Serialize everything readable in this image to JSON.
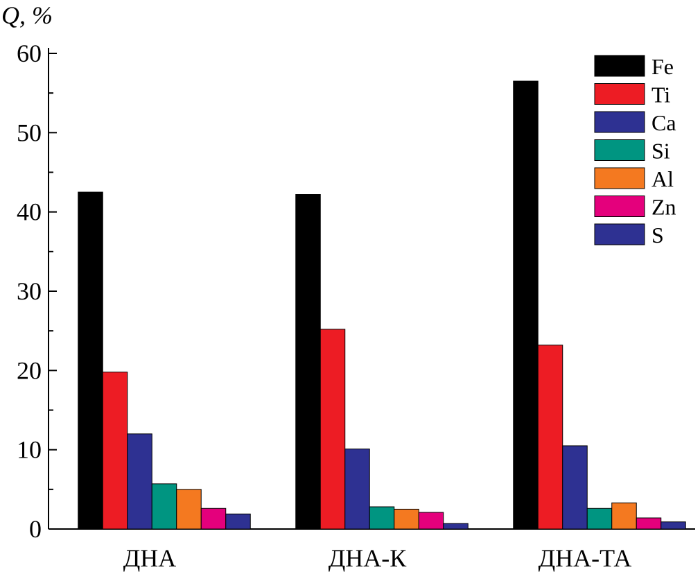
{
  "chart_data": {
    "type": "bar",
    "ylabel": "Q, %",
    "xlabel": "",
    "ylim": [
      0,
      60
    ],
    "yticks": [
      "0",
      "10",
      "20",
      "30",
      "40",
      "50",
      "60"
    ],
    "categories": [
      "ДНА",
      "ДНА-К",
      "ДНА-ТА"
    ],
    "series": [
      {
        "name": "Fe",
        "color": "#000000",
        "values": [
          42.5,
          42.2,
          56.5
        ]
      },
      {
        "name": "Ti",
        "color": "#ed1c24",
        "values": [
          19.8,
          25.2,
          23.2
        ]
      },
      {
        "name": "Ca",
        "color": "#2e3192",
        "values": [
          12.0,
          10.1,
          10.5
        ]
      },
      {
        "name": "Si",
        "color": "#009581",
        "values": [
          5.7,
          2.8,
          2.6
        ]
      },
      {
        "name": "Al",
        "color": "#f47920",
        "values": [
          5.0,
          2.5,
          3.3
        ]
      },
      {
        "name": "Zn",
        "color": "#e4007c",
        "values": [
          2.6,
          2.1,
          1.4
        ]
      },
      {
        "name": "S",
        "color": "#2e3192",
        "values": [
          1.9,
          0.7,
          0.9
        ]
      }
    ],
    "legend_position": "top-right",
    "grid": false
  }
}
